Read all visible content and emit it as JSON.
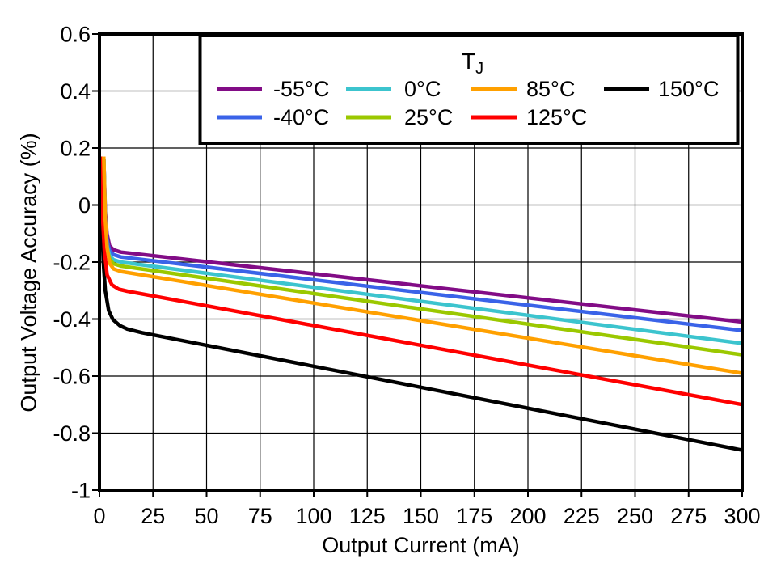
{
  "chart_data": {
    "type": "line",
    "title": "",
    "xlabel": "Output Current (mA)",
    "ylabel": "Output Voltage Accuracy (%)",
    "xlim": [
      0,
      300
    ],
    "ylim": [
      -1,
      0.6
    ],
    "grid": true,
    "xticks": {
      "values": [
        0,
        25,
        50,
        75,
        100,
        125,
        150,
        175,
        200,
        225,
        250,
        275,
        300
      ],
      "labels": [
        "0",
        "25",
        "50",
        "75",
        "100",
        "125",
        "150",
        "175",
        "200",
        "225",
        "250",
        "275",
        "300"
      ]
    },
    "yticks": {
      "values": [
        0.6,
        0.4,
        0.2,
        0,
        -0.2,
        -0.4,
        -0.6,
        -0.8,
        -1
      ],
      "labels": [
        "0.6",
        "0.4",
        "0.2",
        "0",
        "-0.2",
        "-0.4",
        "-0.6",
        "-0.8",
        "-1"
      ]
    },
    "legend": {
      "title": "T",
      "title_sub": "J",
      "position": "top",
      "rows": [
        [
          "-55°C",
          "0°C",
          "85°C",
          "150°C"
        ],
        [
          "-40°C",
          "25°C",
          "125°C"
        ]
      ]
    },
    "series": [
      {
        "name": "-55°C",
        "color": "#820C86",
        "points": [
          [
            2.05,
            0.16
          ],
          [
            2.7,
            -0.02
          ],
          [
            3.5,
            -0.1
          ],
          [
            4.7,
            -0.143
          ],
          [
            6.6,
            -0.157
          ],
          [
            10,
            -0.165
          ],
          [
            300,
            -0.41
          ]
        ]
      },
      {
        "name": "-40°C",
        "color": "#3A63E8",
        "points": [
          [
            2.05,
            0.16
          ],
          [
            2.7,
            -0.04
          ],
          [
            3.5,
            -0.12
          ],
          [
            4.7,
            -0.16
          ],
          [
            6.6,
            -0.174
          ],
          [
            10,
            -0.182
          ],
          [
            300,
            -0.44
          ]
        ]
      },
      {
        "name": "0°C",
        "color": "#3CC4CE",
        "points": [
          [
            2.05,
            0.16
          ],
          [
            2.7,
            -0.06
          ],
          [
            3.5,
            -0.14
          ],
          [
            4.7,
            -0.178
          ],
          [
            6.6,
            -0.192
          ],
          [
            10,
            -0.2
          ],
          [
            300,
            -0.485
          ]
        ]
      },
      {
        "name": "25°C",
        "color": "#9BC800",
        "points": [
          [
            2.05,
            0.16
          ],
          [
            2.7,
            -0.07
          ],
          [
            3.5,
            -0.152
          ],
          [
            4.7,
            -0.19
          ],
          [
            6.6,
            -0.206
          ],
          [
            10,
            -0.214
          ],
          [
            300,
            -0.525
          ]
        ]
      },
      {
        "name": "85°C",
        "color": "#FFA000",
        "points": [
          [
            2.0,
            0.17
          ],
          [
            2.7,
            -0.05
          ],
          [
            3.6,
            -0.15
          ],
          [
            4.8,
            -0.205
          ],
          [
            6.6,
            -0.224
          ],
          [
            10,
            -0.233
          ],
          [
            300,
            -0.59
          ]
        ]
      },
      {
        "name": "125°C",
        "color": "#FF0000",
        "points": [
          [
            0.8,
            0.17
          ],
          [
            1.5,
            -0.05
          ],
          [
            2.3,
            -0.16
          ],
          [
            3.6,
            -0.245
          ],
          [
            5.8,
            -0.28
          ],
          [
            9,
            -0.295
          ],
          [
            13,
            -0.302
          ],
          [
            300,
            -0.7
          ]
        ]
      },
      {
        "name": "150°C",
        "color": "#000000",
        "points": [
          [
            0.6,
            0.17
          ],
          [
            1.1,
            -0.05
          ],
          [
            1.8,
            -0.2
          ],
          [
            2.7,
            -0.3
          ],
          [
            4.3,
            -0.37
          ],
          [
            6.3,
            -0.402
          ],
          [
            9.5,
            -0.423
          ],
          [
            13,
            -0.435
          ],
          [
            20,
            -0.448
          ],
          [
            300,
            -0.86
          ]
        ]
      }
    ]
  }
}
